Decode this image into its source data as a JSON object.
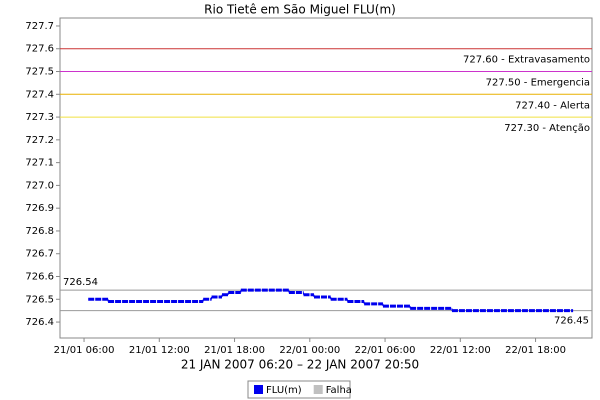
{
  "chart_data": {
    "type": "step-line",
    "title": "Rio Tietê em São Miguel FLU(m)",
    "xlabel": "21 JAN 2007 06:20 – 22 JAN 2007 20:50",
    "xlim": [
      "21/01 04:05",
      "22/01 22:30"
    ],
    "xticks": [
      "21/01 06:00",
      "21/01 12:00",
      "21/01 18:00",
      "22/01 00:00",
      "22/01 06:00",
      "22/01 12:00",
      "22/01 18:00"
    ],
    "ylim": [
      726.33,
      727.735
    ],
    "yticks": [
      726.4,
      726.5,
      726.6,
      726.7,
      726.8,
      726.9,
      {
        "value": 727,
        "label": "727.0"
      },
      727.1,
      727.2,
      727.3,
      727.4,
      727.5,
      727.6,
      727.7
    ],
    "grid": false,
    "thresholds": [
      {
        "value": 727.6,
        "label": "727.60 - Extravasamento",
        "color": "#cc3333"
      },
      {
        "value": 727.5,
        "label": "727.50 - Emergencia",
        "color": "#cc33cc"
      },
      {
        "value": 727.4,
        "label": "727.40 - Alerta",
        "color": "#e8b000"
      },
      {
        "value": 727.3,
        "label": "727.30 - Atenção",
        "color": "#f0e040"
      }
    ],
    "references": [
      {
        "value": 726.54,
        "label": "726.54",
        "color": "#999999"
      },
      {
        "value": 726.45,
        "label": "726.45",
        "color": "#999999"
      }
    ],
    "series": [
      {
        "name": "FLU(m)",
        "color": "#0000ee",
        "x": [
          "21/01 06:20",
          "21/01 07:55",
          "21/01 15:30",
          "21/01 16:10",
          "21/01 17:00",
          "21/01 17:30",
          "21/01 18:30",
          "21/01 22:20",
          "21/01 23:30",
          "22/01 00:20",
          "22/01 01:40",
          "22/01 03:00",
          "22/01 04:20",
          "22/01 05:50",
          "22/01 08:00",
          "22/01 11:20",
          "22/01 20:50"
        ],
        "values": [
          726.5,
          726.49,
          726.5,
          726.51,
          726.52,
          726.53,
          726.54,
          726.53,
          726.52,
          726.51,
          726.5,
          726.49,
          726.48,
          726.47,
          726.46,
          726.45,
          726.45
        ]
      },
      {
        "name": "Falha",
        "color": "#c0c0c0",
        "x": [],
        "values": []
      }
    ]
  }
}
